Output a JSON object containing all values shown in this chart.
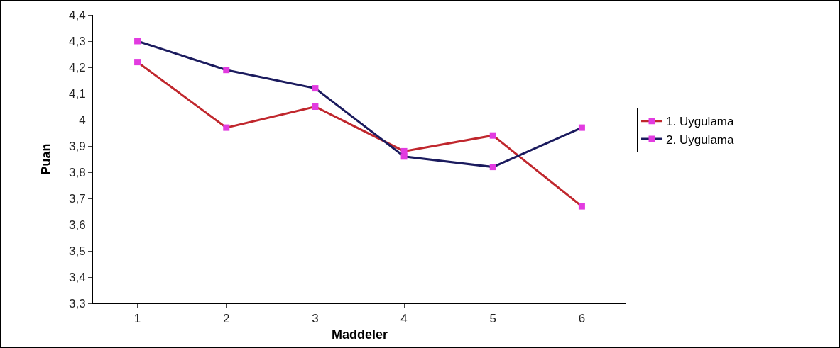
{
  "chart_data": {
    "type": "line",
    "xlabel": "Maddeler",
    "ylabel": "Puan",
    "categories": [
      "1",
      "2",
      "3",
      "4",
      "5",
      "6"
    ],
    "series": [
      {
        "name": "1. Uygulama",
        "color": "#c0272d",
        "values": [
          4.22,
          3.97,
          4.05,
          3.88,
          3.94,
          3.67
        ]
      },
      {
        "name": "2. Uygulama",
        "color": "#1b1b5e",
        "values": [
          4.3,
          4.19,
          4.12,
          3.86,
          3.82,
          3.97
        ]
      }
    ],
    "ylim": [
      3.3,
      4.4
    ],
    "yticks": [
      {
        "value": 3.3,
        "label": "3,3"
      },
      {
        "value": 3.4,
        "label": "3,4"
      },
      {
        "value": 3.5,
        "label": "3,5"
      },
      {
        "value": 3.6,
        "label": "3,6"
      },
      {
        "value": 3.7,
        "label": "3,7"
      },
      {
        "value": 3.8,
        "label": "3,8"
      },
      {
        "value": 3.9,
        "label": "3,9"
      },
      {
        "value": 4,
        "label": "4"
      },
      {
        "value": 4.1,
        "label": "4,1"
      },
      {
        "value": 4.2,
        "label": "4,2"
      },
      {
        "value": 4.3,
        "label": "4,3"
      },
      {
        "value": 4.4,
        "label": "4,4"
      }
    ],
    "grid": false,
    "legend": "right",
    "marker": "square",
    "line_style": "solid"
  }
}
